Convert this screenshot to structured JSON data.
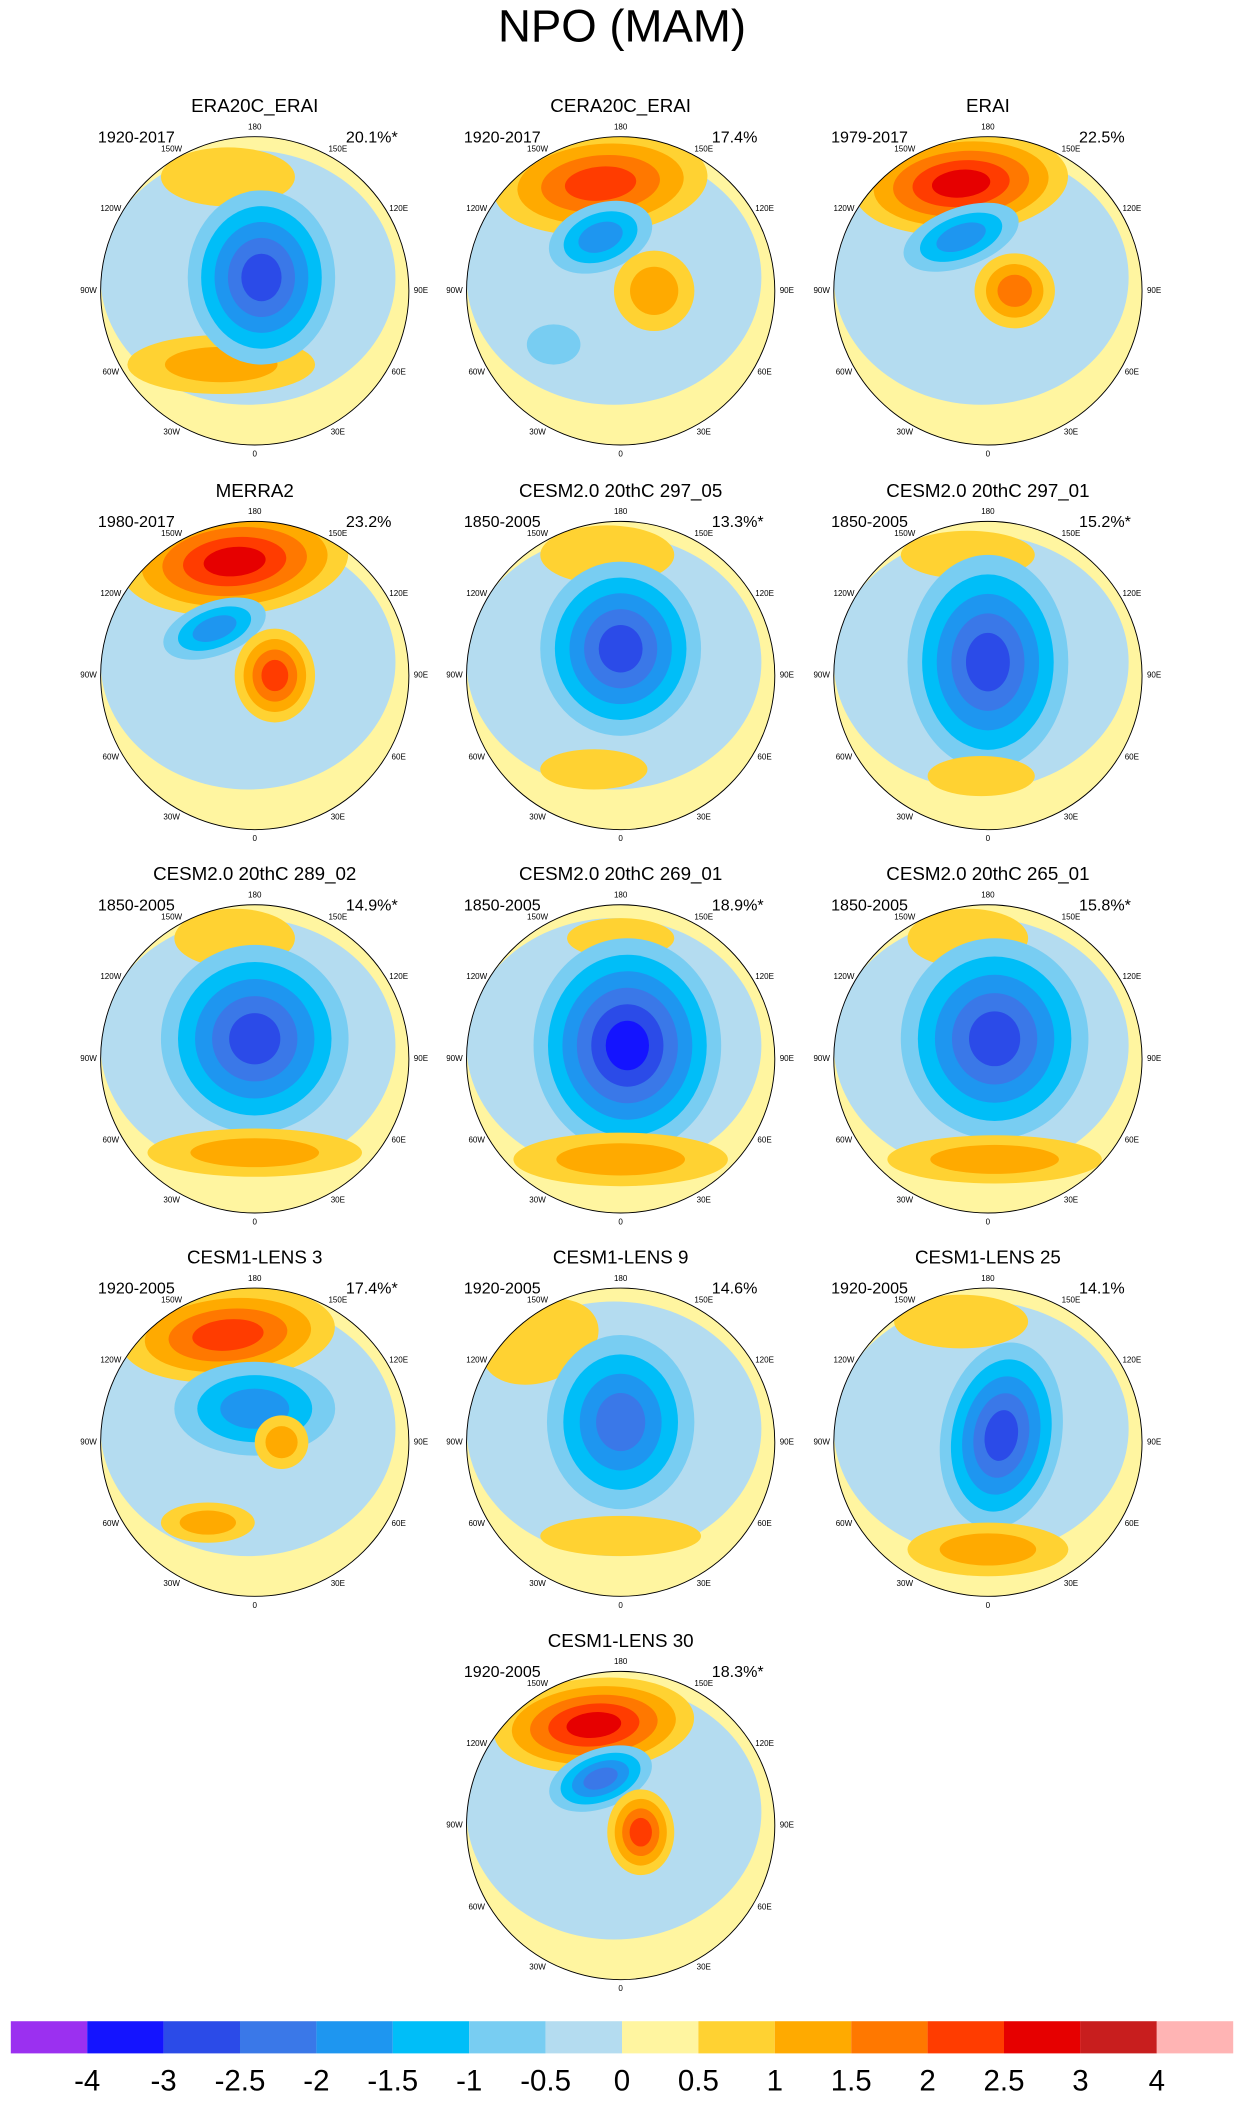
{
  "title": "NPO (MAM)",
  "panels": [
    {
      "title": "ERA20C_ERAI",
      "period": "1920-2017",
      "variance": "20.1%*"
    },
    {
      "title": "CERA20C_ERAI",
      "period": "1920-2017",
      "variance": "17.4%"
    },
    {
      "title": "ERAI",
      "period": "1979-2017",
      "variance": "22.5%"
    },
    {
      "title": "MERRA2",
      "period": "1980-2017",
      "variance": "23.2%"
    },
    {
      "title": "CESM2.0 20thC 297_05",
      "period": "1850-2005",
      "variance": "13.3%*"
    },
    {
      "title": "CESM2.0 20thC 297_01",
      "period": "1850-2005",
      "variance": "15.2%*"
    },
    {
      "title": "CESM2.0 20thC 289_02",
      "period": "1850-2005",
      "variance": "14.9%*"
    },
    {
      "title": "CESM2.0 20thC 269_01",
      "period": "1850-2005",
      "variance": "18.9%*"
    },
    {
      "title": "CESM2.0 20thC 265_01",
      "period": "1850-2005",
      "variance": "15.8%*"
    },
    {
      "title": "CESM1-LENS 3",
      "period": "1920-2005",
      "variance": "17.4%*"
    },
    {
      "title": "CESM1-LENS 9",
      "period": "1920-2005",
      "variance": "14.6%"
    },
    {
      "title": "CESM1-LENS 25",
      "period": "1920-2005",
      "variance": "14.1%"
    },
    {
      "title": "CESM1-LENS 30",
      "period": "1920-2005",
      "variance": "18.3%*"
    }
  ],
  "longitude_labels": [
    "180",
    "150E",
    "120E",
    "90E",
    "60E",
    "30E",
    "0",
    "30W",
    "60W",
    "90W",
    "120W",
    "150W"
  ],
  "colorbar": {
    "colors": [
      "#9b30f0",
      "#1414ff",
      "#2b4be8",
      "#3a78e8",
      "#1e96f0",
      "#00bef8",
      "#78cdf2",
      "#b4dcf0",
      "#fff5a0",
      "#ffd232",
      "#ffaa00",
      "#ff7800",
      "#ff3c00",
      "#e60000",
      "#c81e1e",
      "#ffb4b4"
    ],
    "labels": [
      -4,
      -3,
      -2.5,
      -2,
      -1.5,
      -1,
      -0.5,
      0,
      0.5,
      1,
      1.5,
      2,
      2.5,
      3,
      4
    ]
  }
}
